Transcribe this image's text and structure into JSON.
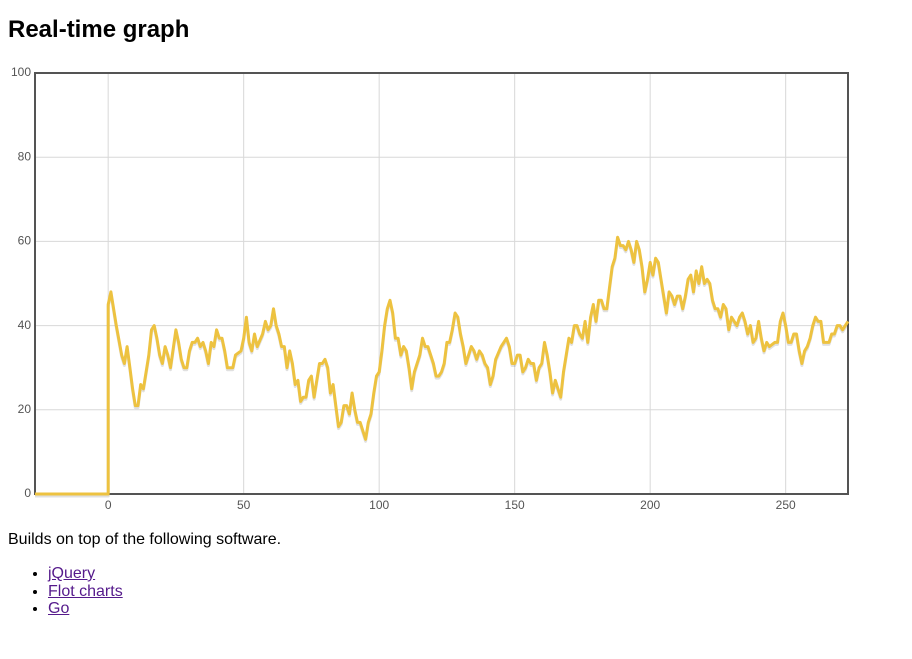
{
  "heading": "Real-time graph",
  "intro": "Builds on top of the following software.",
  "links": [
    "jQuery",
    "Flot charts",
    "Go"
  ],
  "chart_data": {
    "type": "line",
    "color": "#edc240",
    "grid": true,
    "xlim": [
      -27,
      273
    ],
    "ylim": [
      0,
      100
    ],
    "xticks": [
      0,
      50,
      100,
      150,
      200,
      250
    ],
    "yticks": [
      0,
      20,
      40,
      60,
      80,
      100
    ],
    "x": [
      -27,
      0,
      0,
      1,
      3,
      5,
      6,
      7,
      8,
      9,
      10,
      11,
      12,
      13,
      15,
      16,
      17,
      18,
      19,
      20,
      21,
      22,
      23,
      25,
      26,
      27,
      28,
      29,
      30,
      31,
      32,
      33,
      34,
      35,
      36,
      37,
      38,
      39,
      40,
      41,
      42,
      43,
      44,
      46,
      47,
      49,
      50,
      51,
      52,
      53,
      54,
      55,
      57,
      58,
      59,
      60,
      61,
      62,
      63,
      64,
      65,
      66,
      67,
      68,
      69,
      70,
      71,
      72,
      73,
      74,
      75,
      76,
      77,
      78,
      79,
      80,
      81,
      82,
      83,
      84,
      85,
      86,
      87,
      88,
      89,
      90,
      91,
      92,
      93,
      94,
      95,
      96,
      97,
      98,
      99,
      100,
      101,
      102,
      103,
      104,
      105,
      106,
      107,
      108,
      109,
      110,
      111,
      112,
      113,
      115,
      116,
      117,
      118,
      119,
      120,
      121,
      122,
      123,
      124,
      125,
      126,
      127,
      128,
      129,
      130,
      131,
      132,
      133,
      134,
      135,
      136,
      137,
      138,
      139,
      140,
      141,
      142,
      143,
      145,
      146,
      147,
      148,
      149,
      150,
      151,
      152,
      153,
      154,
      155,
      156,
      157,
      158,
      159,
      160,
      161,
      162,
      163,
      164,
      165,
      166,
      167,
      168,
      169,
      170,
      171,
      172,
      173,
      174,
      175,
      176,
      177,
      178,
      179,
      180,
      181,
      182,
      183,
      184,
      185,
      186,
      187,
      188,
      189,
      190,
      191,
      192,
      193,
      194,
      195,
      196,
      197,
      198,
      199,
      200,
      201,
      202,
      203,
      204,
      205,
      206,
      207,
      208,
      209,
      210,
      211,
      212,
      213,
      214,
      215,
      216,
      217,
      218,
      219,
      220,
      221,
      222,
      223,
      224,
      225,
      226,
      227,
      228,
      229,
      230,
      231,
      232,
      233,
      234,
      235,
      236,
      237,
      238,
      239,
      240,
      241,
      242,
      243,
      244,
      246,
      247,
      248,
      249,
      250,
      251,
      252,
      253,
      254,
      255,
      256,
      257,
      258,
      259,
      260,
      261,
      262,
      263,
      264,
      265,
      266,
      267,
      268,
      269,
      270,
      271,
      272,
      273
    ],
    "values": [
      0,
      0,
      45,
      48,
      40,
      33,
      31,
      35,
      30,
      25,
      21,
      21,
      26,
      25,
      33,
      39,
      40,
      37,
      33,
      31,
      35,
      33,
      30,
      39,
      36,
      32,
      30,
      30,
      34,
      36,
      36,
      37,
      35,
      36,
      34,
      31,
      36,
      35,
      39,
      37,
      37,
      34,
      30,
      30,
      33,
      34,
      37,
      42,
      36,
      34,
      38,
      35,
      38,
      41,
      39,
      40,
      44,
      40,
      38,
      35,
      35,
      30,
      34,
      31,
      26,
      27,
      22,
      23,
      23,
      27,
      28,
      23,
      27,
      31,
      31,
      32,
      30,
      24,
      26,
      21,
      16,
      17,
      21,
      21,
      19,
      24,
      20,
      17,
      17,
      15,
      13,
      17,
      19,
      24,
      28,
      29,
      34,
      40,
      44,
      46,
      43,
      37,
      37,
      33,
      35,
      34,
      30,
      25,
      29,
      33,
      37,
      35,
      35,
      33,
      31,
      28,
      28,
      29,
      31,
      36,
      36,
      39,
      43,
      42,
      38,
      35,
      31,
      33,
      35,
      34,
      32,
      34,
      33,
      31,
      30,
      26,
      28,
      32,
      35,
      36,
      37,
      35,
      31,
      31,
      33,
      33,
      29,
      30,
      32,
      31,
      31,
      27,
      30,
      31,
      36,
      33,
      29,
      24,
      27,
      25,
      23,
      29,
      33,
      37,
      36,
      40,
      40,
      38,
      37,
      41,
      36,
      42,
      45,
      41,
      46,
      46,
      44,
      44,
      49,
      54,
      56,
      61,
      59,
      59,
      58,
      60,
      58,
      55,
      60,
      58,
      54,
      48,
      51,
      55,
      52,
      56,
      55,
      51,
      47,
      43,
      48,
      47,
      45,
      47,
      47,
      44,
      47,
      51,
      52,
      48,
      53,
      50,
      54,
      50,
      51,
      50,
      46,
      44,
      44,
      42,
      45,
      44,
      39,
      42,
      41,
      40,
      42,
      43,
      41,
      38,
      40,
      36,
      37,
      41,
      37,
      34,
      36,
      35,
      36,
      36,
      41,
      43,
      40,
      36,
      36,
      38,
      38,
      34,
      31,
      34,
      35,
      37,
      40,
      42,
      41,
      41,
      36,
      36,
      36,
      38,
      38,
      40,
      40,
      39,
      40,
      41
    ]
  }
}
